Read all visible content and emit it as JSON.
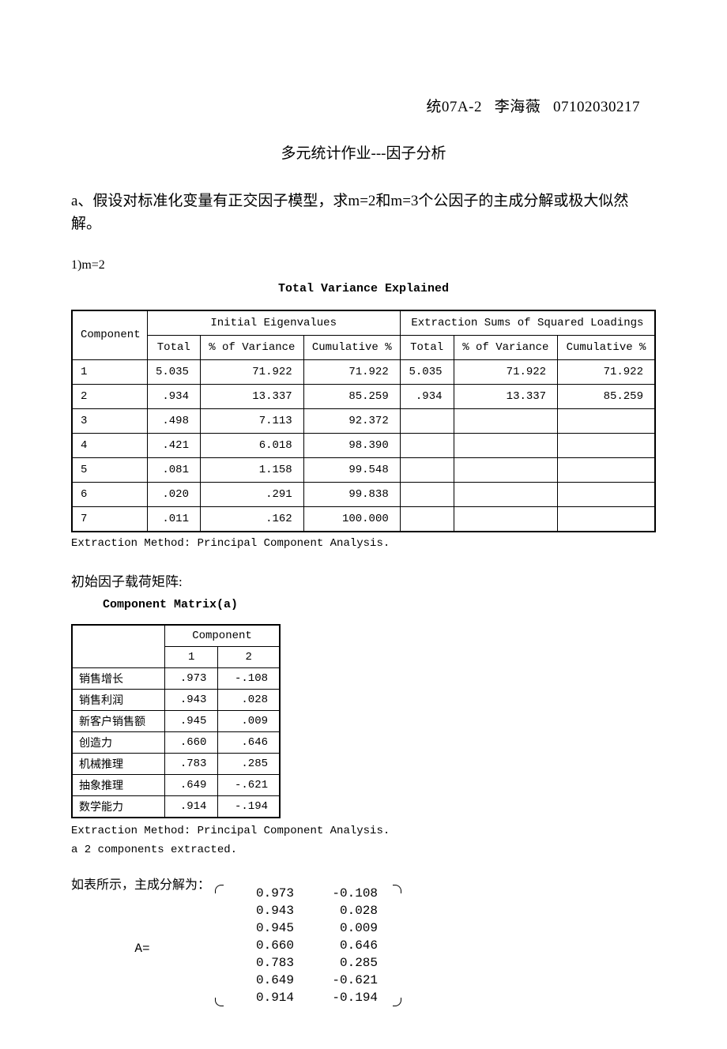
{
  "header": {
    "class_name": "统07A-2",
    "student_name": "李海薇",
    "student_id": "07102030217"
  },
  "main_title": "多元统计作业---因子分析",
  "section_a": "a、假设对标准化变量有正交因子模型，求m=2和m=3个公因子的主成分解或极大似然解。",
  "subpoint_1": "1)m=2",
  "variance_table": {
    "title": "Total Variance Explained",
    "header_groups": [
      "Initial Eigenvalues",
      "Extraction Sums of Squared Loadings"
    ],
    "sub_headers": [
      "Total",
      "% of Variance",
      "Cumulative %"
    ],
    "row_label": "Component",
    "rows": [
      {
        "c": "1",
        "t": "5.035",
        "v": "71.922",
        "cu": "71.922",
        "et": "5.035",
        "ev": "71.922",
        "ecu": "71.922"
      },
      {
        "c": "2",
        "t": ".934",
        "v": "13.337",
        "cu": "85.259",
        "et": ".934",
        "ev": "13.337",
        "ecu": "85.259"
      },
      {
        "c": "3",
        "t": ".498",
        "v": "7.113",
        "cu": "92.372",
        "et": "",
        "ev": "",
        "ecu": ""
      },
      {
        "c": "4",
        "t": ".421",
        "v": "6.018",
        "cu": "98.390",
        "et": "",
        "ev": "",
        "ecu": ""
      },
      {
        "c": "5",
        "t": ".081",
        "v": "1.158",
        "cu": "99.548",
        "et": "",
        "ev": "",
        "ecu": ""
      },
      {
        "c": "6",
        "t": ".020",
        "v": ".291",
        "cu": "99.838",
        "et": "",
        "ev": "",
        "ecu": ""
      },
      {
        "c": "7",
        "t": ".011",
        "v": ".162",
        "cu": "100.000",
        "et": "",
        "ev": "",
        "ecu": ""
      }
    ],
    "note": "Extraction Method: Principal Component Analysis."
  },
  "loading_intro": "初始因子载荷矩阵:",
  "component_matrix": {
    "title": "Component Matrix(a)",
    "group_header": "Component",
    "cols": [
      "1",
      "2"
    ],
    "rows": [
      {
        "name": "销售增长",
        "v1": ".973",
        "v2": "-.108"
      },
      {
        "name": "销售利润",
        "v1": ".943",
        "v2": ".028"
      },
      {
        "name": "新客户销售额",
        "v1": ".945",
        "v2": ".009"
      },
      {
        "name": "创造力",
        "v1": ".660",
        "v2": ".646"
      },
      {
        "name": "机械推理",
        "v1": ".783",
        "v2": ".285"
      },
      {
        "name": "抽象推理",
        "v1": ".649",
        "v2": "-.621"
      },
      {
        "name": "数学能力",
        "v1": ".914",
        "v2": "-.194"
      }
    ],
    "note1": "Extraction Method: Principal Component Analysis.",
    "note2": "a  2 components extracted."
  },
  "solution": {
    "intro": "如表所示，主成分解为：",
    "label": "A=",
    "matrix": [
      [
        "0.973",
        "-0.108"
      ],
      [
        "0.943",
        "0.028"
      ],
      [
        "0.945",
        "0.009"
      ],
      [
        "0.660",
        "0.646"
      ],
      [
        "0.783",
        "0.285"
      ],
      [
        "0.649",
        "-0.621"
      ],
      [
        "0.914",
        "-0.194"
      ]
    ]
  }
}
